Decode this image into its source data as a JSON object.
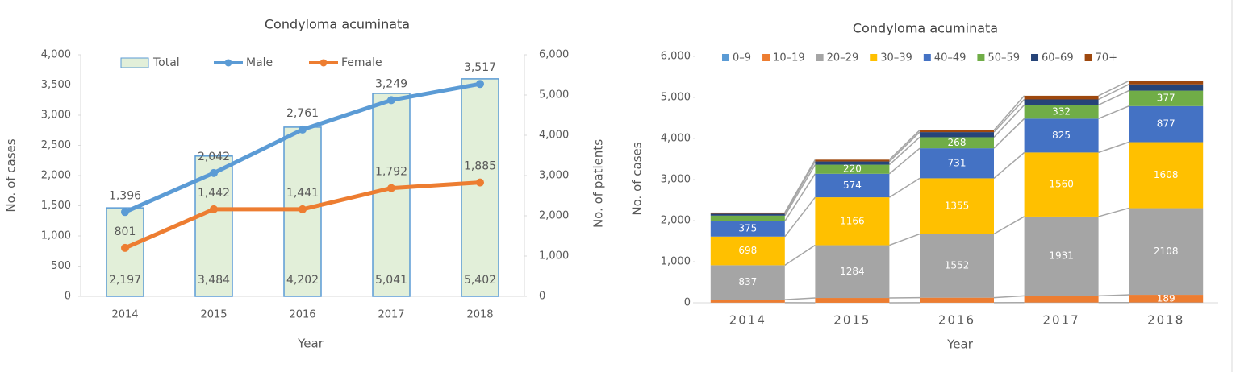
{
  "chart_data": [
    {
      "type": "combo",
      "title": "Condyloma acuminata",
      "xlabel": "Year",
      "ylabel": "No. of cases",
      "y2label": "No. of patients",
      "categories": [
        "2014",
        "2015",
        "2016",
        "2017",
        "2018"
      ],
      "series": [
        {
          "name": "Total",
          "kind": "bar",
          "axis": "y2",
          "color": "#e2efd9",
          "edge": "#5b9bd5",
          "values": [
            2197,
            3484,
            4202,
            5041,
            5402
          ],
          "value_labels": [
            "2,197",
            "3,484",
            "4,202",
            "5,041",
            "5,402"
          ]
        },
        {
          "name": "Male",
          "kind": "line",
          "color": "#5b9bd5",
          "values": [
            1396,
            2042,
            2761,
            3249,
            3517
          ],
          "value_labels": [
            "1,396",
            "2,042",
            "2,761",
            "3,249",
            "3,517"
          ]
        },
        {
          "name": "Female",
          "kind": "line",
          "color": "#ed7d31",
          "values": [
            801,
            1442,
            1441,
            1792,
            1885
          ],
          "value_labels": [
            "801",
            "1,442",
            "1,441",
            "1,792",
            "1,885"
          ]
        }
      ],
      "ylim": [
        0,
        4000
      ],
      "yticks": [
        0,
        500,
        {
          "value": 1000,
          "label": "1,000"
        },
        {
          "value": 1500,
          "label": "1,500"
        },
        {
          "value": 2000,
          "label": "2,000"
        },
        {
          "value": 2500,
          "label": "2,500"
        },
        {
          "value": 3000,
          "label": "3,000"
        },
        {
          "value": 3500,
          "label": "3,500"
        },
        {
          "value": 4000,
          "label": "4,000"
        }
      ],
      "y2lim": [
        0,
        6000
      ],
      "y2ticks": [
        0,
        {
          "value": 1000,
          "label": "1,000"
        },
        {
          "value": 2000,
          "label": "2,000"
        },
        {
          "value": 3000,
          "label": "3,000"
        },
        {
          "value": 4000,
          "label": "4,000"
        },
        {
          "value": 5000,
          "label": "5,000"
        },
        {
          "value": 6000,
          "label": "6,000"
        }
      ]
    },
    {
      "type": "stacked_bar",
      "title": "Condyloma acuminata",
      "xlabel": "Year",
      "ylabel": "No. of cases",
      "categories": [
        "2014",
        "2015",
        "2016",
        "2017",
        "2018"
      ],
      "series": [
        {
          "name": "0–9",
          "color": "#5b9bd5",
          "values": [
            3,
            1,
            2,
            5,
            6
          ]
        },
        {
          "name": "10–19",
          "color": "#ed7d31",
          "values": [
            74,
            116,
            122,
            163,
            189
          ]
        },
        {
          "name": "20–29",
          "color": "#a5a5a5",
          "values": [
            837,
            1284,
            1552,
            1931,
            2108
          ]
        },
        {
          "name": "30–39",
          "color": "#ffc000",
          "values": [
            698,
            1166,
            1355,
            1560,
            1608
          ]
        },
        {
          "name": "40–49",
          "color": "#4472c4",
          "values": [
            375,
            574,
            731,
            825,
            877
          ]
        },
        {
          "name": "50–59",
          "color": "#70ad47",
          "values": [
            134,
            220,
            268,
            332,
            377
          ]
        },
        {
          "name": "60–69",
          "color": "#264478",
          "values": [
            47,
            79,
            125,
            135,
            153
          ]
        },
        {
          "name": "70+",
          "color": "#9e480e",
          "values": [
            29,
            44,
            47,
            90,
            84
          ]
        }
      ],
      "ylim": [
        0,
        6000
      ],
      "yticks": [
        0,
        {
          "value": 1000,
          "label": "1,000"
        },
        {
          "value": 2000,
          "label": "2,000"
        },
        {
          "value": 3000,
          "label": "3,000"
        },
        {
          "value": 4000,
          "label": "4,000"
        },
        {
          "value": 5000,
          "label": "5,000"
        },
        {
          "value": 6000,
          "label": "6,000"
        }
      ]
    }
  ]
}
